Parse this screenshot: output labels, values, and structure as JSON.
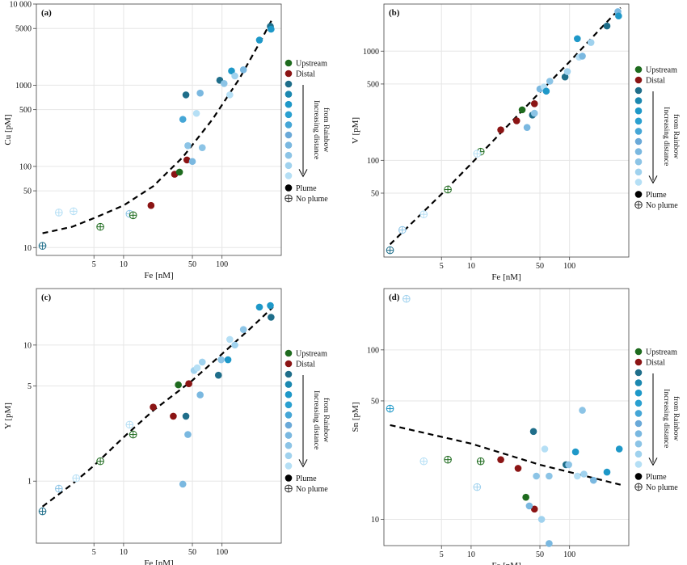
{
  "colors": {
    "upstream": "#1e6b1e",
    "distal": "#8b1414",
    "gradient": [
      "#1f6e8a",
      "#1b88b0",
      "#1e98c8",
      "#2aa0d0",
      "#45a6d6",
      "#6aa9d8",
      "#7ab8e0",
      "#8cc4e6",
      "#a0d2ee",
      "#b5dff5"
    ],
    "plume": "#000000",
    "fit_line": "#000000"
  },
  "legend": {
    "upstream": "Upstream",
    "distal": "Distal",
    "gradient_label_1": "Increasing distance",
    "gradient_label_2": "from Rainbow",
    "plume": "Plume",
    "no_plume": "No plume"
  },
  "chart_data": [
    {
      "panel": "(a)",
      "type": "scatter",
      "xlabel": "Fe [nM]",
      "ylabel": "Cu [pM]",
      "xscale": "log",
      "yscale": "log",
      "xlim": [
        1.3,
        400
      ],
      "ylim": [
        8,
        10000
      ],
      "grid": true,
      "x_ticks": [
        {
          "v": 5,
          "label": "5"
        },
        {
          "v": 10,
          "label": "10"
        },
        {
          "v": 50,
          "label": "50"
        },
        {
          "v": 100,
          "label": "100"
        }
      ],
      "y_ticks": [
        {
          "v": 10,
          "label": "10"
        },
        {
          "v": 50,
          "label": "50"
        },
        {
          "v": 100,
          "label": "100"
        },
        {
          "v": 500,
          "label": "500"
        },
        {
          "v": 1000,
          "label": "1000"
        },
        {
          "v": 5000,
          "label": "5000"
        },
        {
          "v": 10000,
          "label": "10 000"
        }
      ],
      "fit": [
        [
          1.5,
          15
        ],
        [
          3,
          18
        ],
        [
          5,
          23
        ],
        [
          10,
          33
        ],
        [
          20,
          57
        ],
        [
          40,
          130
        ],
        [
          80,
          380
        ],
        [
          150,
          1200
        ],
        [
          250,
          3600
        ],
        [
          330,
          6800
        ]
      ],
      "points": [
        {
          "x": 1.5,
          "y": 10.5,
          "g": "grad",
          "c": 0,
          "plume": false
        },
        {
          "x": 2.2,
          "y": 27,
          "g": "grad",
          "c": 9,
          "plume": false
        },
        {
          "x": 3.1,
          "y": 28,
          "g": "grad",
          "c": 9,
          "plume": false
        },
        {
          "x": 5.8,
          "y": 18,
          "g": "upstream",
          "plume": false
        },
        {
          "x": 11.5,
          "y": 26,
          "g": "grad",
          "c": 7,
          "plume": false
        },
        {
          "x": 12.5,
          "y": 25,
          "g": "upstream",
          "plume": false
        },
        {
          "x": 19,
          "y": 33,
          "g": "distal",
          "plume": true
        },
        {
          "x": 33,
          "y": 80,
          "g": "distal",
          "plume": true
        },
        {
          "x": 37,
          "y": 85,
          "g": "upstream",
          "plume": true
        },
        {
          "x": 44,
          "y": 120,
          "g": "distal",
          "plume": true
        },
        {
          "x": 40,
          "y": 380,
          "g": "grad",
          "c": 4,
          "plume": true
        },
        {
          "x": 43,
          "y": 760,
          "g": "grad",
          "c": 0,
          "plume": true
        },
        {
          "x": 45,
          "y": 180,
          "g": "grad",
          "c": 7,
          "plume": true
        },
        {
          "x": 50,
          "y": 115,
          "g": "grad",
          "c": 6,
          "plume": true
        },
        {
          "x": 55,
          "y": 450,
          "g": "grad",
          "c": 9,
          "plume": true
        },
        {
          "x": 60,
          "y": 800,
          "g": "grad",
          "c": 6,
          "plume": true
        },
        {
          "x": 63,
          "y": 170,
          "g": "grad",
          "c": 7,
          "plume": true
        },
        {
          "x": 95,
          "y": 1150,
          "g": "grad",
          "c": 0,
          "plume": true
        },
        {
          "x": 105,
          "y": 1050,
          "g": "grad",
          "c": 7,
          "plume": true
        },
        {
          "x": 125,
          "y": 1500,
          "g": "grad",
          "c": 2,
          "plume": true
        },
        {
          "x": 120,
          "y": 760,
          "g": "grad",
          "c": 9,
          "plume": true
        },
        {
          "x": 135,
          "y": 1300,
          "g": "grad",
          "c": 8,
          "plume": true
        },
        {
          "x": 165,
          "y": 1550,
          "g": "grad",
          "c": 6,
          "plume": true
        },
        {
          "x": 240,
          "y": 3600,
          "g": "grad",
          "c": 2,
          "plume": true
        },
        {
          "x": 310,
          "y": 5300,
          "g": "grad",
          "c": 0,
          "plume": true
        },
        {
          "x": 315,
          "y": 4900,
          "g": "grad",
          "c": 2,
          "plume": true
        }
      ]
    },
    {
      "panel": "(b)",
      "type": "scatter",
      "xlabel": "Fe [nM]",
      "ylabel": "V [pM]",
      "xscale": "log",
      "yscale": "log",
      "xlim": [
        1.3,
        400
      ],
      "ylim": [
        13,
        2700
      ],
      "grid": true,
      "x_ticks": [
        {
          "v": 5,
          "label": "5"
        },
        {
          "v": 10,
          "label": "10"
        },
        {
          "v": 50,
          "label": "50"
        },
        {
          "v": 100,
          "label": "100"
        }
      ],
      "y_ticks": [
        {
          "v": 50,
          "label": "50"
        },
        {
          "v": 100,
          "label": "100"
        },
        {
          "v": 500,
          "label": "500"
        },
        {
          "v": 1000,
          "label": "1000"
        }
      ],
      "fit": [
        [
          1.5,
          17
        ],
        [
          5,
          49
        ],
        [
          10,
          93
        ],
        [
          50,
          420
        ],
        [
          100,
          800
        ],
        [
          200,
          1560
        ],
        [
          330,
          2500
        ]
      ],
      "points": [
        {
          "x": 1.5,
          "y": 15,
          "g": "grad",
          "c": 0,
          "plume": false
        },
        {
          "x": 2.0,
          "y": 23,
          "g": "grad",
          "c": 7,
          "plume": false
        },
        {
          "x": 3.3,
          "y": 32,
          "g": "grad",
          "c": 9,
          "plume": false
        },
        {
          "x": 5.8,
          "y": 54,
          "g": "upstream",
          "plume": false
        },
        {
          "x": 12.5,
          "y": 120,
          "g": "upstream",
          "plume": false
        },
        {
          "x": 11.5,
          "y": 115,
          "g": "grad",
          "c": 9,
          "plume": false
        },
        {
          "x": 20,
          "y": 190,
          "g": "distal",
          "plume": true
        },
        {
          "x": 29,
          "y": 230,
          "g": "distal",
          "plume": true
        },
        {
          "x": 33,
          "y": 290,
          "g": "upstream",
          "plume": true
        },
        {
          "x": 44,
          "y": 330,
          "g": "distal",
          "plume": true
        },
        {
          "x": 37,
          "y": 200,
          "g": "grad",
          "c": 6,
          "plume": true
        },
        {
          "x": 42,
          "y": 260,
          "g": "grad",
          "c": 0,
          "plume": true
        },
        {
          "x": 44,
          "y": 270,
          "g": "grad",
          "c": 7,
          "plume": true
        },
        {
          "x": 50,
          "y": 450,
          "g": "grad",
          "c": 6,
          "plume": true
        },
        {
          "x": 55,
          "y": 470,
          "g": "grad",
          "c": 9,
          "plume": true
        },
        {
          "x": 58,
          "y": 430,
          "g": "grad",
          "c": 2,
          "plume": true
        },
        {
          "x": 63,
          "y": 530,
          "g": "grad",
          "c": 7,
          "plume": true
        },
        {
          "x": 90,
          "y": 580,
          "g": "grad",
          "c": 0,
          "plume": true
        },
        {
          "x": 95,
          "y": 650,
          "g": "grad",
          "c": 8,
          "plume": true
        },
        {
          "x": 120,
          "y": 1300,
          "g": "grad",
          "c": 2,
          "plume": true
        },
        {
          "x": 125,
          "y": 880,
          "g": "grad",
          "c": 9,
          "plume": true
        },
        {
          "x": 135,
          "y": 900,
          "g": "grad",
          "c": 6,
          "plume": true
        },
        {
          "x": 165,
          "y": 1200,
          "g": "grad",
          "c": 8,
          "plume": true
        },
        {
          "x": 240,
          "y": 1700,
          "g": "grad",
          "c": 0,
          "plume": true
        },
        {
          "x": 310,
          "y": 2300,
          "g": "grad",
          "c": 6,
          "plume": true
        },
        {
          "x": 315,
          "y": 2100,
          "g": "grad",
          "c": 2,
          "plume": true
        }
      ]
    },
    {
      "panel": "(c)",
      "type": "scatter",
      "xlabel": "Fe [nM]",
      "ylabel": "Y [pM]",
      "xscale": "log",
      "yscale": "log",
      "xlim": [
        1.3,
        400
      ],
      "ylim": [
        0.35,
        26
      ],
      "grid": true,
      "x_ticks": [
        {
          "v": 5,
          "label": "5"
        },
        {
          "v": 10,
          "label": "10"
        },
        {
          "v": 50,
          "label": "50"
        },
        {
          "v": 100,
          "label": "100"
        }
      ],
      "y_ticks": [
        {
          "v": 1,
          "label": "1"
        },
        {
          "v": 5,
          "label": "5"
        },
        {
          "v": 10,
          "label": "10"
        }
      ],
      "fit": [
        [
          1.5,
          0.65
        ],
        [
          3,
          0.95
        ],
        [
          5,
          1.3
        ],
        [
          10,
          2.1
        ],
        [
          20,
          3.3
        ],
        [
          50,
          5.5
        ],
        [
          100,
          8.6
        ],
        [
          200,
          13.5
        ],
        [
          330,
          19
        ]
      ],
      "points": [
        {
          "x": 1.5,
          "y": 0.6,
          "g": "grad",
          "c": 0,
          "plume": false
        },
        {
          "x": 2.2,
          "y": 0.88,
          "g": "grad",
          "c": 7,
          "plume": false
        },
        {
          "x": 3.3,
          "y": 1.05,
          "g": "grad",
          "c": 9,
          "plume": false
        },
        {
          "x": 5.8,
          "y": 1.4,
          "g": "upstream",
          "plume": false
        },
        {
          "x": 11.5,
          "y": 2.6,
          "g": "grad",
          "c": 9,
          "plume": false
        },
        {
          "x": 12.5,
          "y": 2.2,
          "g": "upstream",
          "plume": false
        },
        {
          "x": 20,
          "y": 3.5,
          "g": "distal",
          "plume": true
        },
        {
          "x": 32,
          "y": 3.0,
          "g": "distal",
          "plume": true
        },
        {
          "x": 36,
          "y": 5.1,
          "g": "upstream",
          "plume": true
        },
        {
          "x": 46,
          "y": 5.2,
          "g": "distal",
          "plume": true
        },
        {
          "x": 40,
          "y": 0.95,
          "g": "grad",
          "c": 6,
          "plume": true
        },
        {
          "x": 43,
          "y": 3.0,
          "g": "grad",
          "c": 0,
          "plume": true
        },
        {
          "x": 45,
          "y": 2.2,
          "g": "grad",
          "c": 6,
          "plume": true
        },
        {
          "x": 52,
          "y": 6.5,
          "g": "grad",
          "c": 8,
          "plume": true
        },
        {
          "x": 56,
          "y": 6.8,
          "g": "grad",
          "c": 9,
          "plume": true
        },
        {
          "x": 60,
          "y": 4.3,
          "g": "grad",
          "c": 6,
          "plume": true
        },
        {
          "x": 63,
          "y": 7.5,
          "g": "grad",
          "c": 8,
          "plume": true
        },
        {
          "x": 92,
          "y": 6.0,
          "g": "grad",
          "c": 0,
          "plume": true
        },
        {
          "x": 98,
          "y": 7.8,
          "g": "grad",
          "c": 7,
          "plume": true
        },
        {
          "x": 115,
          "y": 7.8,
          "g": "grad",
          "c": 2,
          "plume": true
        },
        {
          "x": 120,
          "y": 11,
          "g": "grad",
          "c": 9,
          "plume": true
        },
        {
          "x": 135,
          "y": 10,
          "g": "grad",
          "c": 8,
          "plume": true
        },
        {
          "x": 165,
          "y": 13,
          "g": "grad",
          "c": 7,
          "plume": true
        },
        {
          "x": 240,
          "y": 19,
          "g": "grad",
          "c": 2,
          "plume": true
        },
        {
          "x": 310,
          "y": 19.5,
          "g": "grad",
          "c": 2,
          "plume": true
        },
        {
          "x": 315,
          "y": 16,
          "g": "grad",
          "c": 0,
          "plume": true
        }
      ]
    },
    {
      "panel": "(d)",
      "type": "scatter",
      "xlabel": "Fe [nM]",
      "ylabel": "Sn [pM]",
      "xscale": "log",
      "yscale": "log",
      "xlim": [
        1.3,
        400
      ],
      "ylim": [
        7,
        230
      ],
      "grid": true,
      "x_ticks": [
        {
          "v": 5,
          "label": "5"
        },
        {
          "v": 10,
          "label": "10"
        },
        {
          "v": 50,
          "label": "50"
        },
        {
          "v": 100,
          "label": "100"
        }
      ],
      "y_ticks": [
        {
          "v": 10,
          "label": "10"
        },
        {
          "v": 50,
          "label": "50"
        },
        {
          "v": 100,
          "label": "100"
        }
      ],
      "fit": [
        [
          1.5,
          36
        ],
        [
          10,
          28
        ],
        [
          50,
          21
        ],
        [
          100,
          19
        ],
        [
          330,
          16
        ]
      ],
      "points": [
        {
          "x": 1.5,
          "y": 45,
          "g": "grad",
          "c": 2,
          "plume": false
        },
        {
          "x": 2.2,
          "y": 200,
          "g": "grad",
          "c": 8,
          "plume": false
        },
        {
          "x": 3.3,
          "y": 22,
          "g": "grad",
          "c": 9,
          "plume": false
        },
        {
          "x": 5.8,
          "y": 22.5,
          "g": "upstream",
          "plume": false
        },
        {
          "x": 11.5,
          "y": 15.5,
          "g": "grad",
          "c": 8,
          "plume": false
        },
        {
          "x": 12.5,
          "y": 22,
          "g": "upstream",
          "plume": false
        },
        {
          "x": 20,
          "y": 22.5,
          "g": "distal",
          "plume": true
        },
        {
          "x": 30,
          "y": 20,
          "g": "distal",
          "plume": true
        },
        {
          "x": 36,
          "y": 13.5,
          "g": "upstream",
          "plume": true
        },
        {
          "x": 44,
          "y": 11.5,
          "g": "distal",
          "plume": true
        },
        {
          "x": 39,
          "y": 12,
          "g": "grad",
          "c": 6,
          "plume": true
        },
        {
          "x": 43,
          "y": 33,
          "g": "grad",
          "c": 0,
          "plume": true
        },
        {
          "x": 46,
          "y": 18,
          "g": "grad",
          "c": 7,
          "plume": true
        },
        {
          "x": 52,
          "y": 10,
          "g": "grad",
          "c": 8,
          "plume": true
        },
        {
          "x": 56,
          "y": 26,
          "g": "grad",
          "c": 9,
          "plume": true
        },
        {
          "x": 62,
          "y": 18,
          "g": "grad",
          "c": 7,
          "plume": true
        },
        {
          "x": 62,
          "y": 7.2,
          "g": "grad",
          "c": 6,
          "plume": true
        },
        {
          "x": 92,
          "y": 21,
          "g": "grad",
          "c": 0,
          "plume": true
        },
        {
          "x": 98,
          "y": 21,
          "g": "grad",
          "c": 7,
          "plume": true
        },
        {
          "x": 115,
          "y": 25,
          "g": "grad",
          "c": 2,
          "plume": true
        },
        {
          "x": 120,
          "y": 18,
          "g": "grad",
          "c": 9,
          "plume": true
        },
        {
          "x": 135,
          "y": 44,
          "g": "grad",
          "c": 7,
          "plume": true
        },
        {
          "x": 140,
          "y": 18.5,
          "g": "grad",
          "c": 8,
          "plume": true
        },
        {
          "x": 175,
          "y": 17,
          "g": "grad",
          "c": 6,
          "plume": true
        },
        {
          "x": 240,
          "y": 19,
          "g": "grad",
          "c": 2,
          "plume": true
        },
        {
          "x": 320,
          "y": 26,
          "g": "grad",
          "c": 2,
          "plume": true
        }
      ]
    }
  ]
}
